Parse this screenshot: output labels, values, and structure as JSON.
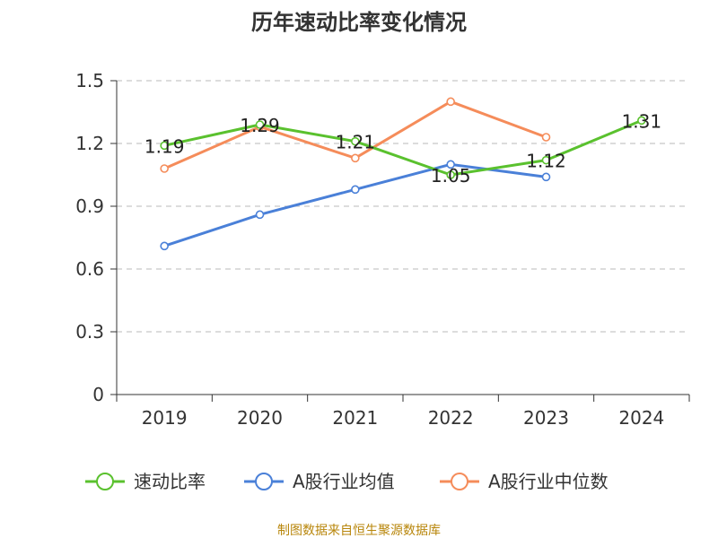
{
  "chart_data": {
    "type": "line",
    "title": "历年速动比率变化情况",
    "categories": [
      "2019",
      "2020",
      "2021",
      "2022",
      "2023",
      "2024"
    ],
    "ylim": [
      0,
      1.5
    ],
    "yticks": [
      "0",
      "0.3",
      "0.6",
      "0.9",
      "1.2",
      "1.5"
    ],
    "grid": true,
    "legend_position": "bottom",
    "series": [
      {
        "name": "速动比率",
        "color": "#5ac12e",
        "values": [
          1.19,
          1.29,
          1.21,
          1.05,
          1.12,
          1.31
        ],
        "labels": [
          "1.19",
          "1.29",
          "1.21",
          "1.05",
          "1.12",
          "1.31"
        ]
      },
      {
        "name": "A股行业均值",
        "color": "#4a80d8",
        "values": [
          0.71,
          0.86,
          0.98,
          1.1,
          1.04,
          null
        ]
      },
      {
        "name": "A股行业中位数",
        "color": "#f58c5a",
        "values": [
          1.08,
          1.28,
          1.13,
          1.4,
          1.23,
          null
        ]
      }
    ],
    "source": "制图数据来自恒生聚源数据库"
  }
}
